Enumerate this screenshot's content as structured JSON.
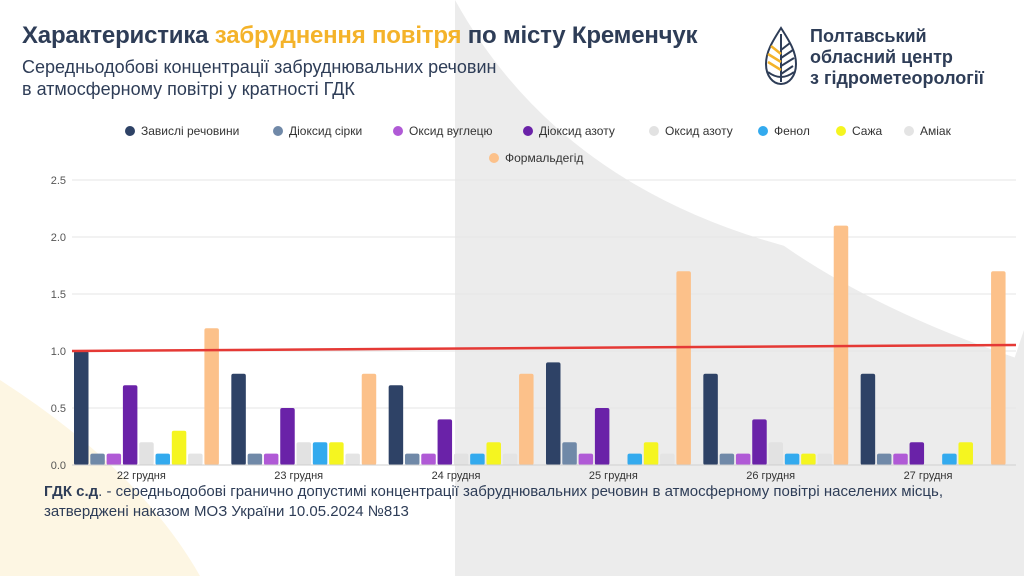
{
  "header": {
    "title_part1": "Характеристика ",
    "title_highlight": "забруднення повітря",
    "title_part2": " по місту Кременчук",
    "subtitle_line1": "Середньодобові концентрації забруднювальних речовин",
    "subtitle_line2": "в атмосферному повітрі у кратності ГДК"
  },
  "logo": {
    "line1": "Полтавський",
    "line2": "обласний центр",
    "line3": "з гідрометеорології",
    "icon": "water-drop-leaf-icon"
  },
  "footnote": {
    "term": "ГДК с.д",
    "text": ". - середньодобові гранично допустимі концентрації забруднювальних речовин в атмосферному повітрі населених місць, затверджені наказом МОЗ України 10.05.2024 №813"
  },
  "colors": {
    "title": "#2e3d57",
    "highlight": "#f4b32a",
    "limit_line": "#e53935"
  },
  "chart_data": {
    "type": "bar",
    "categories": [
      "22 грудня",
      "23 грудня",
      "24 грудня",
      "25 грудня",
      "26 грудня",
      "27 грудня"
    ],
    "series": [
      {
        "name": "Завислі речовини",
        "color": "#2e4266",
        "values": [
          1.0,
          0.8,
          0.7,
          0.9,
          0.8,
          0.8
        ]
      },
      {
        "name": "Діоксид сірки",
        "color": "#7089a8",
        "values": [
          0.1,
          0.1,
          0.1,
          0.2,
          0.1,
          0.1
        ]
      },
      {
        "name": "Оксид вуглецю",
        "color": "#b05ad6",
        "values": [
          0.1,
          0.1,
          0.1,
          0.1,
          0.1,
          0.1
        ]
      },
      {
        "name": "Діоксид азоту",
        "color": "#6a22a8",
        "values": [
          0.7,
          0.5,
          0.4,
          0.5,
          0.4,
          0.2
        ]
      },
      {
        "name": "Оксид азоту",
        "color": "#e2e2e2",
        "values": [
          0.2,
          0.2,
          0.1,
          0.0,
          0.2,
          0.0
        ]
      },
      {
        "name": "Фенол",
        "color": "#33aaee",
        "values": [
          0.1,
          0.2,
          0.1,
          0.1,
          0.1,
          0.1
        ]
      },
      {
        "name": "Сажа",
        "color": "#f5f520",
        "values": [
          0.3,
          0.2,
          0.2,
          0.2,
          0.1,
          0.2
        ]
      },
      {
        "name": "Аміак",
        "color": "#e4e4e4",
        "values": [
          0.1,
          0.1,
          0.1,
          0.1,
          0.1,
          0.0
        ]
      },
      {
        "name": "Формальдегід",
        "color": "#fcc18a",
        "values": [
          1.2,
          0.8,
          0.8,
          1.7,
          2.1,
          1.7
        ]
      }
    ],
    "ylim": [
      0,
      2.5
    ],
    "yticks": [
      "0.0",
      "0.5",
      "1.0",
      "1.5",
      "2.0",
      "2.5"
    ],
    "reference_line": {
      "value": 1.0,
      "color": "#e53935"
    },
    "legend_position": "top",
    "grid": true
  }
}
